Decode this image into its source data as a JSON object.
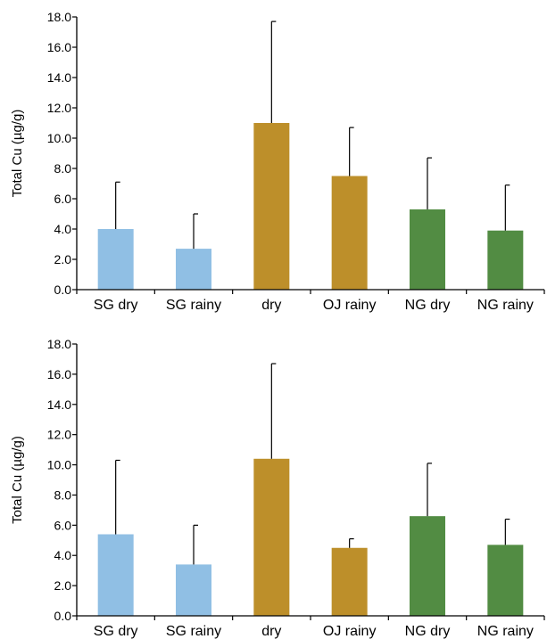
{
  "colors": {
    "sg": "#90bfe4",
    "oj": "#bd8f2a",
    "ng": "#528c43",
    "axis": "#000000"
  },
  "chart_data": [
    {
      "type": "bar",
      "ylabel": "Total Cu (µg/g)",
      "ylim": [
        0,
        18
      ],
      "yticks": [
        "0.0",
        "2.0",
        "4.0",
        "6.0",
        "8.0",
        "10.0",
        "12.0",
        "14.0",
        "16.0",
        "18.0"
      ],
      "categories": [
        "SG dry",
        "SG rainy",
        "dry",
        "OJ rainy",
        "NG dry",
        "NG rainy"
      ],
      "values": [
        4.0,
        2.7,
        11.0,
        7.5,
        5.3,
        3.9
      ],
      "error_upper": [
        7.1,
        5.0,
        17.7,
        10.7,
        8.7,
        6.9
      ],
      "bar_colors": [
        "sg",
        "sg",
        "oj",
        "oj",
        "ng",
        "ng"
      ]
    },
    {
      "type": "bar",
      "ylabel": "Total Cu (µg/g)",
      "ylim": [
        0,
        18
      ],
      "yticks": [
        "0.0",
        "2.0",
        "4.0",
        "6.0",
        "8.0",
        "10.0",
        "12.0",
        "14.0",
        "16.0",
        "18.0"
      ],
      "categories": [
        "SG dry",
        "SG rainy",
        "dry",
        "OJ rainy",
        "NG dry",
        "NG rainy"
      ],
      "values": [
        5.4,
        3.4,
        10.4,
        4.5,
        6.6,
        4.7
      ],
      "error_upper": [
        10.3,
        6.0,
        16.7,
        5.1,
        10.1,
        6.4
      ],
      "bar_colors": [
        "sg",
        "sg",
        "oj",
        "oj",
        "ng",
        "ng"
      ]
    }
  ]
}
